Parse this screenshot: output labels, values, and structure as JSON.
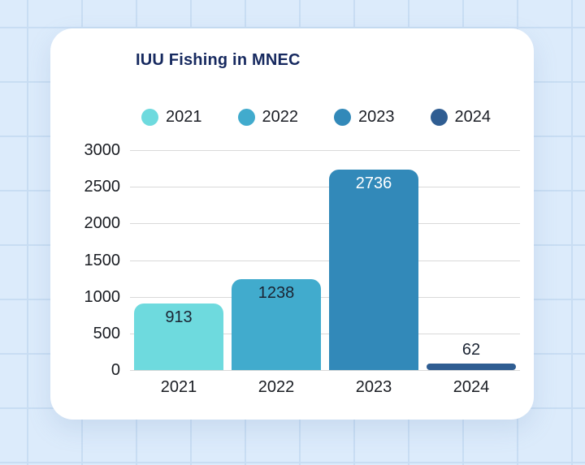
{
  "chart_data": {
    "type": "bar",
    "title": "IUU Fishing in MNEC",
    "categories": [
      "2021",
      "2022",
      "2023",
      "2024"
    ],
    "values": [
      913,
      1238,
      2736,
      62
    ],
    "value_labels": [
      "913",
      "1238",
      "2736",
      "62"
    ],
    "value_label_placement": [
      "inside",
      "inside",
      "inside",
      "above"
    ],
    "value_label_colors": [
      "#1b2433",
      "#1b2433",
      "#ffffff",
      "#1b2433"
    ],
    "bar_colors": [
      "#6edade",
      "#41abcd",
      "#3289b9",
      "#2f5d92"
    ],
    "legend": [
      {
        "label": "2021",
        "color": "#6edade"
      },
      {
        "label": "2022",
        "color": "#41abcd"
      },
      {
        "label": "2023",
        "color": "#3289b9"
      },
      {
        "label": "2024",
        "color": "#2f5d92"
      }
    ],
    "legend_position": "top",
    "xlabel": "",
    "ylabel": "",
    "ylim": [
      0,
      3000
    ],
    "yticks": [
      0,
      500,
      1000,
      1500,
      2000,
      2500,
      3000
    ],
    "grid": "horizontal"
  },
  "colors": {
    "page_background": "#dcebfb",
    "page_grid": "#c8ddf3",
    "card_background": "#ffffff",
    "title_text": "#16295f",
    "axis_text": "#191c22",
    "gridline": "#d9d9d9"
  }
}
